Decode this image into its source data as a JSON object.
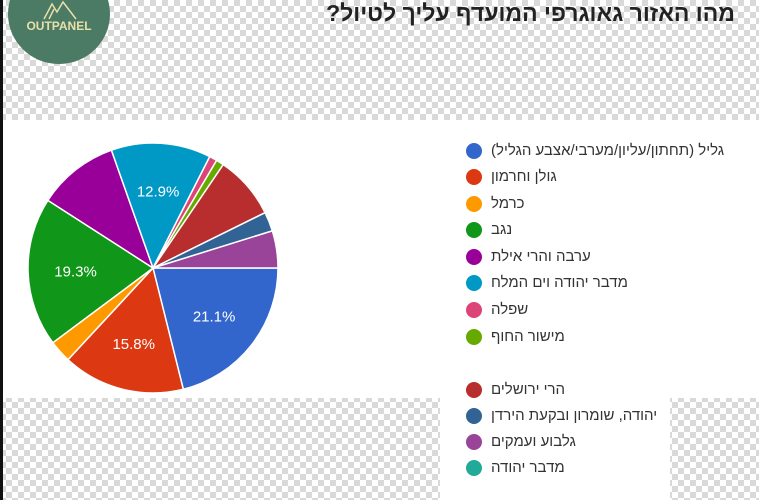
{
  "logo": {
    "text": "OUTPANEL",
    "color": "#4b7a65"
  },
  "chart_data": {
    "type": "pie",
    "title": "מהו האזור גאוגרפי המועדף עליך לטיול?",
    "start": "3 o'clock, clockwise",
    "legend_position": "right",
    "slices": [
      {
        "label": "גליל (תחתון/עליון/מערבי/אצבע הגליל)",
        "value": 21.1,
        "color": "#3366cc",
        "data_label": "21.1%"
      },
      {
        "label": "גולן וחרמון",
        "value": 15.8,
        "color": "#dc3912",
        "data_label": "15.8%"
      },
      {
        "label": "כרמל",
        "value": 2.9,
        "color": "#ff9900",
        "data_label": ""
      },
      {
        "label": "נגב",
        "value": 19.3,
        "color": "#109618",
        "data_label": "19.3%"
      },
      {
        "label": "ערבה והרי אילת",
        "value": 10.5,
        "color": "#990099",
        "data_label": ""
      },
      {
        "label": "מדבר יהודה וים המלח",
        "value": 12.9,
        "color": "#0099c6",
        "data_label": "12.9%"
      },
      {
        "label": "שפלה",
        "value": 1.0,
        "color": "#dd4477",
        "data_label": ""
      },
      {
        "label": "מישור החוף",
        "value": 1.0,
        "color": "#66aa00",
        "data_label": ""
      },
      {
        "label": "הרי ירושלים",
        "value": 8.2,
        "color": "#b82e2e",
        "data_label": ""
      },
      {
        "label": "יהודה, שומרון ובקעת הירדן",
        "value": 2.5,
        "color": "#316395",
        "data_label": ""
      },
      {
        "label": "גלבוע ועמקים",
        "value": 4.8,
        "color": "#994499",
        "data_label": ""
      },
      {
        "label": "מדבר יהודה",
        "value": 0,
        "color": "#22aa99",
        "data_label": ""
      }
    ]
  }
}
